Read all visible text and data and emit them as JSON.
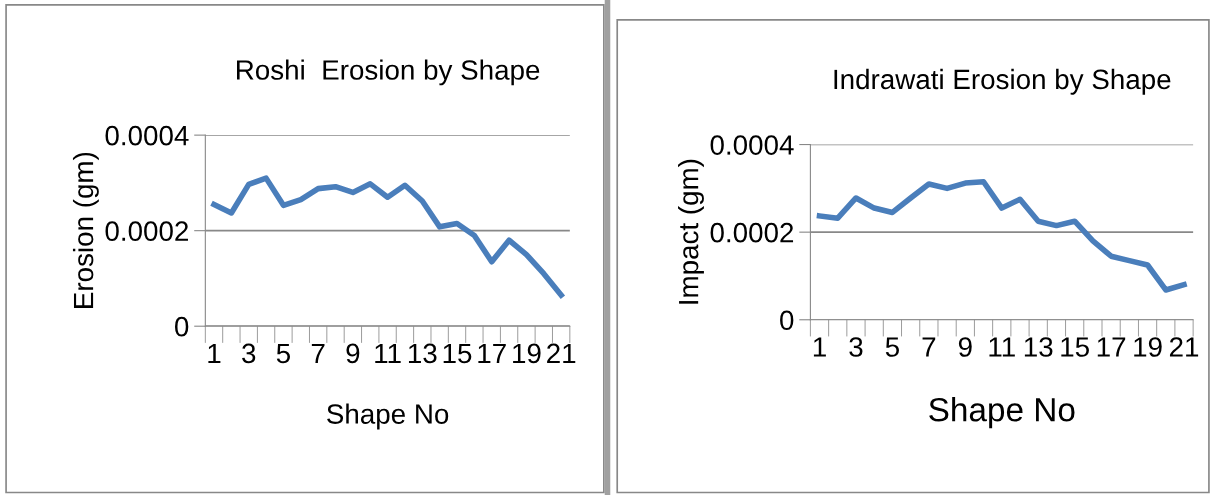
{
  "chart_data": [
    {
      "type": "line",
      "title": "Roshi  Erosion by Shape",
      "xlabel": "Shape No",
      "ylabel": "Erosion (gm)",
      "categories": [
        "1",
        null,
        "3",
        null,
        "5",
        null,
        "7",
        null,
        "9",
        null,
        "11",
        null,
        "13",
        null,
        "15",
        null,
        "17",
        null,
        "19",
        null,
        "21"
      ],
      "series": [
        {
          "color": "#4a7ebb",
          "values": [
            0.000255,
            0.000237,
            0.000297,
            0.00031,
            0.000253,
            0.000265,
            0.000288,
            0.000292,
            0.00028,
            0.000298,
            0.00027,
            0.000295,
            0.000262,
            0.000208,
            0.000215,
            0.00019,
            0.000135,
            0.00018,
            0.00015,
            0.00011,
            6.5e-05
          ]
        }
      ],
      "ylim": [
        0,
        0.0004
      ],
      "yticks": [
        {
          "value": 0,
          "label": "0"
        },
        {
          "value": 0.0002,
          "label": "0.0002"
        },
        {
          "value": 0.0004,
          "label": "0.0004"
        }
      ],
      "grid": "y",
      "marker": "none",
      "line_style": "solid"
    },
    {
      "type": "line",
      "title": "Indrawati Erosion by Shape",
      "xlabel": "Shape No",
      "ylabel": "Impact (gm)",
      "categories": [
        "1",
        null,
        "3",
        null,
        "5",
        null,
        "7",
        null,
        "9",
        null,
        "11",
        null,
        "13",
        null,
        "15",
        null,
        "17",
        null,
        "19",
        null,
        "21"
      ],
      "series": [
        {
          "color": "#4a7ebb",
          "values": [
            0.000237,
            0.000232,
            0.000278,
            0.000255,
            0.000245,
            0.000278,
            0.00031,
            0.0003,
            0.000312,
            0.000315,
            0.000255,
            0.000275,
            0.000225,
            0.000215,
            0.000225,
            0.00018,
            0.000145,
            0.000135,
            0.000125,
            6.8e-05,
            8e-05
          ]
        }
      ],
      "ylim": [
        0,
        0.0004
      ],
      "yticks": [
        {
          "value": 0,
          "label": "0"
        },
        {
          "value": 0.0002,
          "label": "0.0002"
        },
        {
          "value": 0.0004,
          "label": "0.0004"
        }
      ],
      "grid": "y",
      "marker": "none",
      "line_style": "solid"
    }
  ]
}
